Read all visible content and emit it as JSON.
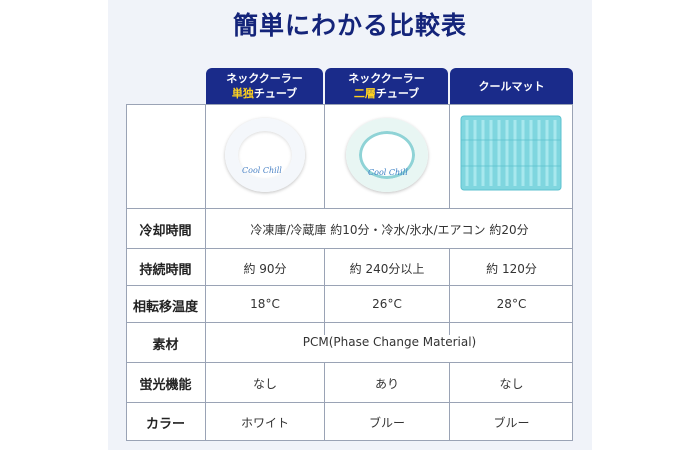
{
  "title": "簡単にわかる比較表",
  "columns": [
    {
      "line1": "ネッククーラー",
      "line2_highlight": "単独",
      "line2_rest": "チューブ"
    },
    {
      "line1": "ネッククーラー",
      "line2_highlight": "二層",
      "line2_rest": "チューブ"
    },
    {
      "line1": "クールマット"
    }
  ],
  "product_logo_text": "Cool Chill",
  "rows": [
    {
      "label": "冷却時間",
      "merged": "冷凍庫/冷蔵庫 約10分・冷水/氷水/エアコン 約20分"
    },
    {
      "label": "持続時間",
      "values": [
        "約 90分",
        "約 240分以上",
        "約 120分"
      ]
    },
    {
      "label": "相転移温度",
      "values": [
        "18°C",
        "26°C",
        "28°C"
      ]
    },
    {
      "label": "素材",
      "merged": "PCM(Phase Change Material)"
    },
    {
      "label": "蛍光機能",
      "values": [
        "なし",
        "あり",
        "なし"
      ]
    },
    {
      "label": "カラー",
      "values": [
        "ホワイト",
        "ブルー",
        "ブルー"
      ]
    }
  ],
  "colors": {
    "header_bg": "#1a2b8a",
    "highlight": "#ffd21f",
    "title": "#14247a",
    "mat": "#7fd6df"
  }
}
